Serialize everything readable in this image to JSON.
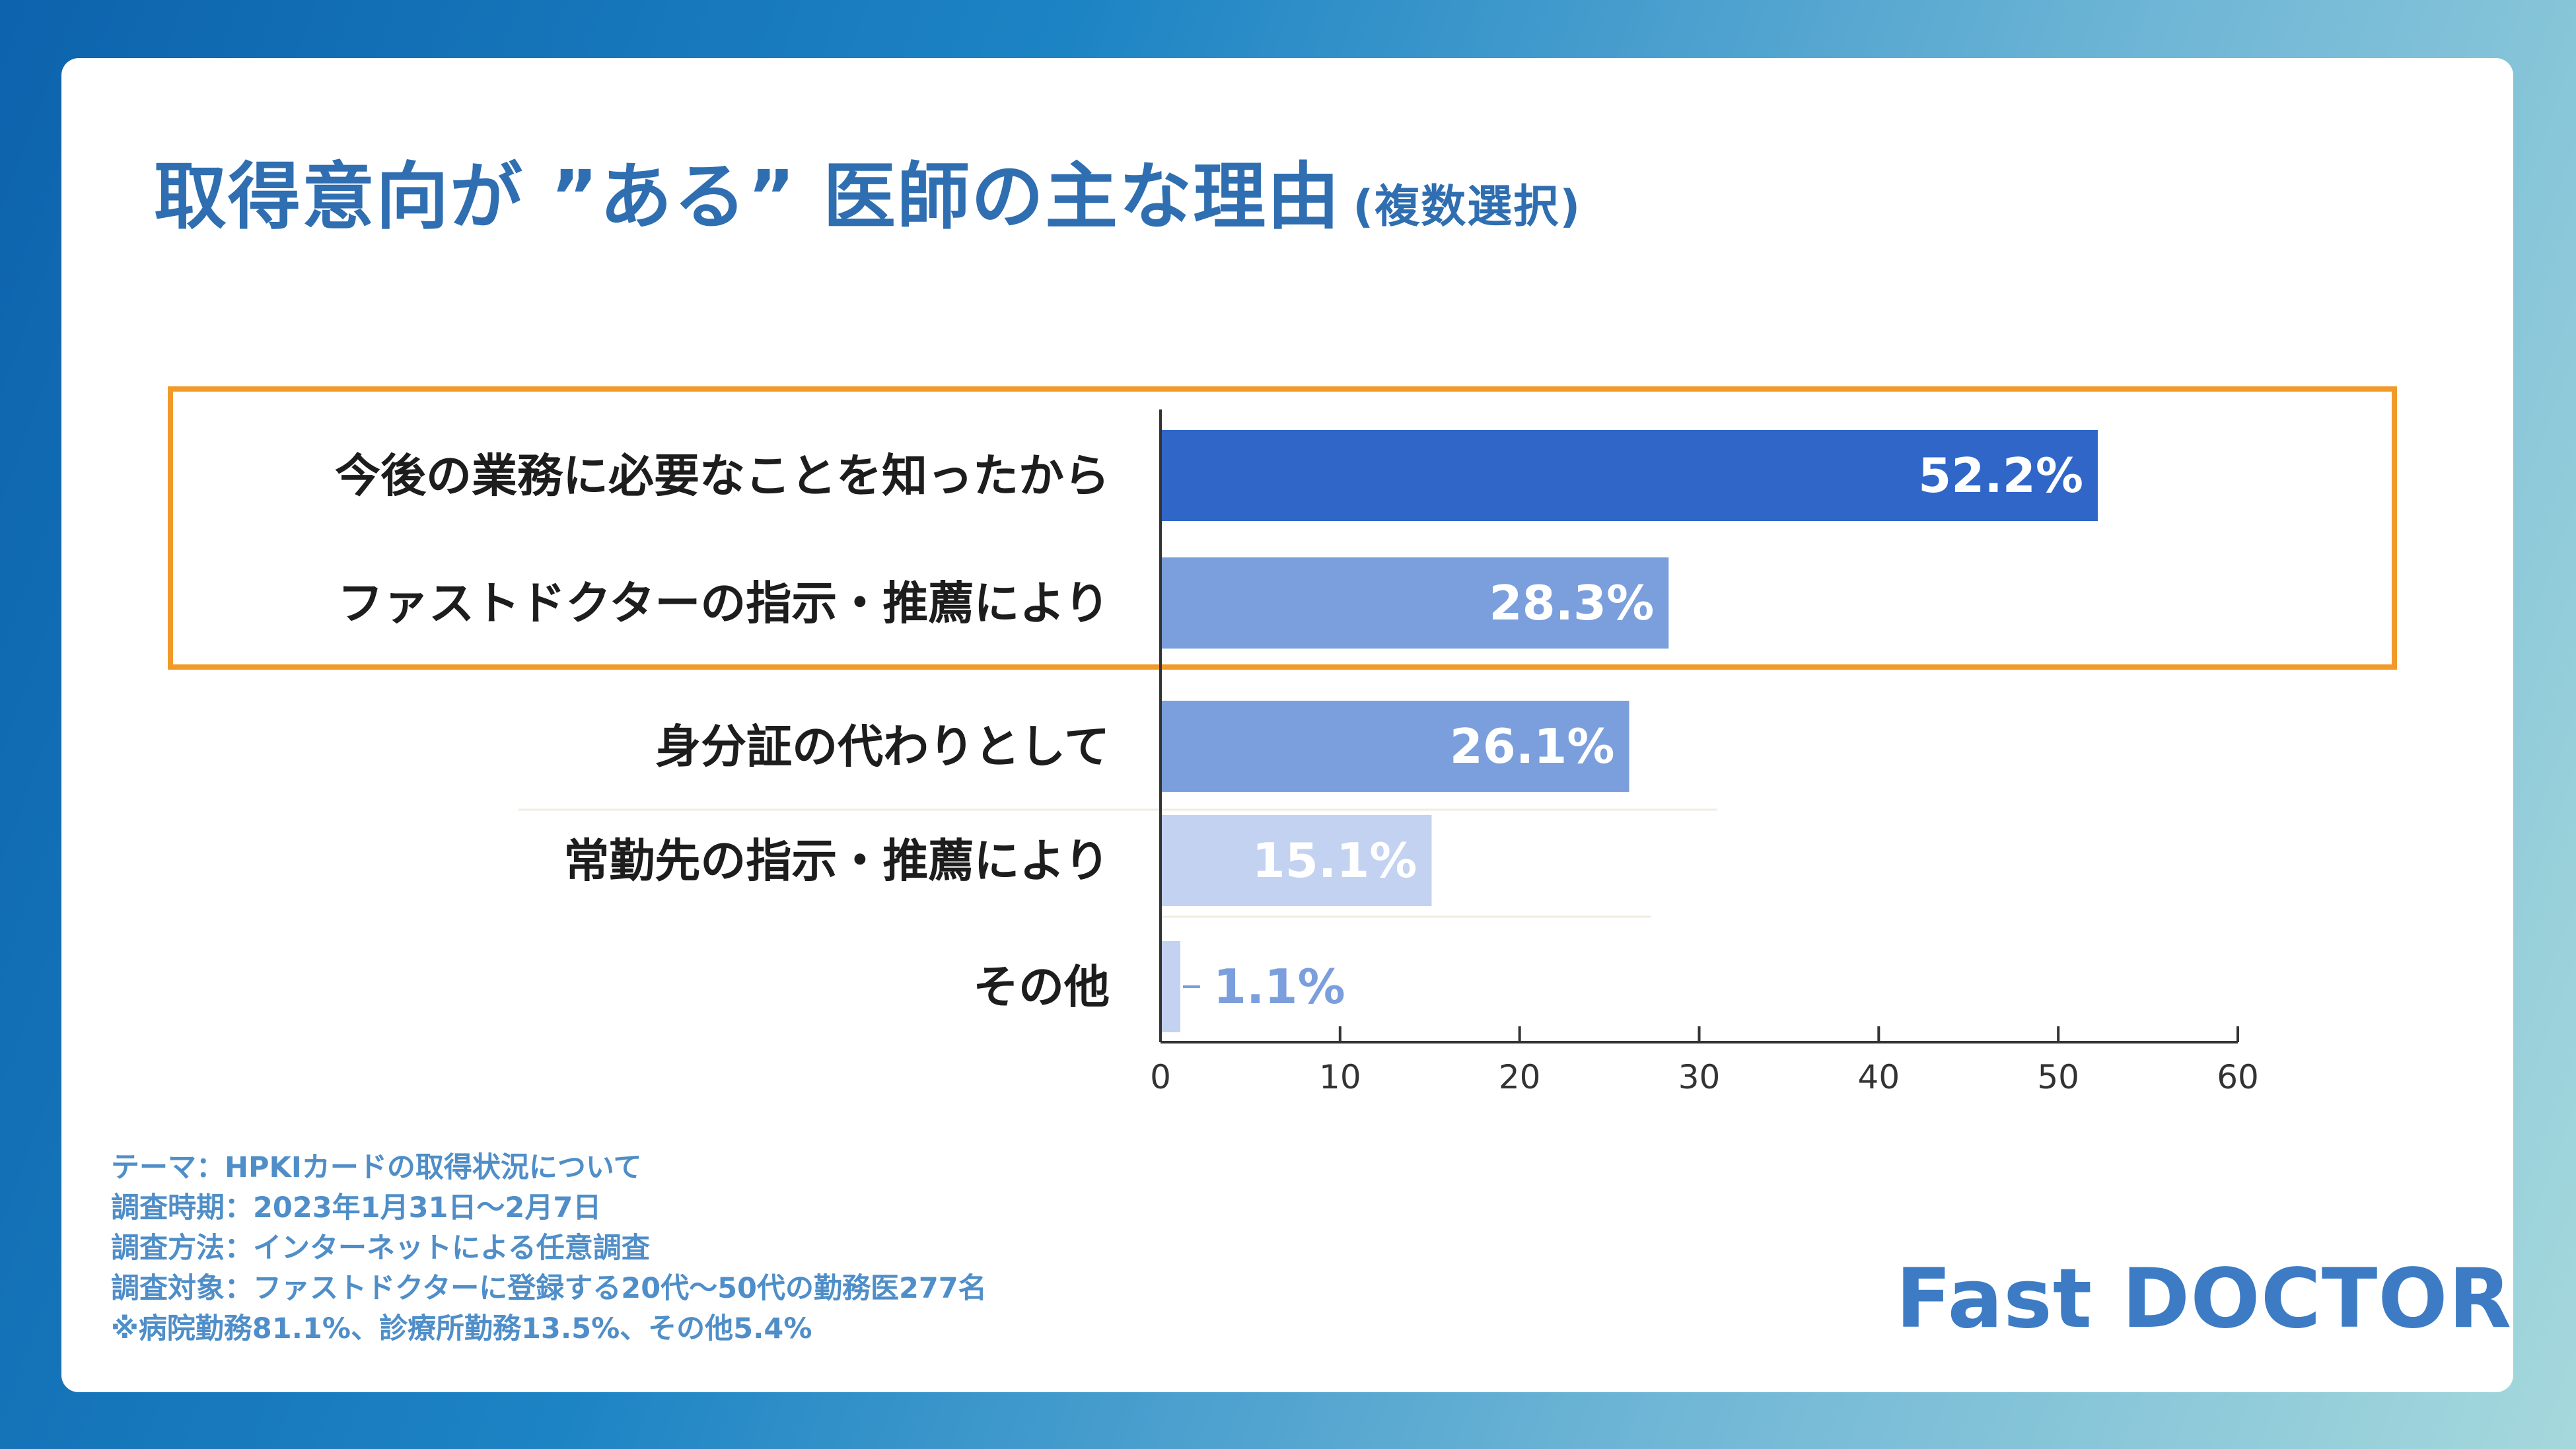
{
  "title": {
    "main": "取得意向が ”ある” 医師の主な理由",
    "sub": "(複数選択)"
  },
  "chart_data": {
    "type": "bar",
    "orientation": "horizontal",
    "categories": [
      "今後の業務に必要なことを知ったから",
      "ファストドクターの指示・推薦により",
      "身分証の代わりとして",
      "常勤先の指示・推薦により",
      "その他"
    ],
    "values": [
      52.2,
      28.3,
      26.1,
      15.1,
      1.1
    ],
    "value_labels": [
      "52.2%",
      "28.3%",
      "26.1%",
      "15.1%",
      "1.1%"
    ],
    "xlim": [
      0,
      60
    ],
    "xticks": [
      0,
      10,
      20,
      30,
      40,
      50,
      60
    ],
    "highlighted": [
      0,
      1
    ],
    "colors": {
      "bars": [
        "#2f66c8",
        "#7b9fdc",
        "#7b9fdc",
        "#c3d2f0",
        "#c3d2f0"
      ],
      "labels": [
        "#ffffff",
        "#ffffff",
        "#ffffff",
        "#ffffff",
        "#7b9fdc"
      ],
      "highlight_border": "#f19a2a"
    }
  },
  "notes": [
    "テーマ：HPKIカードの取得状況について",
    "調査時期：2023年1月31日〜2月7日",
    "調査方法：インターネットによる任意調査",
    "調査対象：ファストドクターに登録する20代〜50代の勤務医277名",
    "※病院勤務81.1%、診療所勤務13.5%、その他5.4%"
  ],
  "logo": "Fast DOCTOR"
}
